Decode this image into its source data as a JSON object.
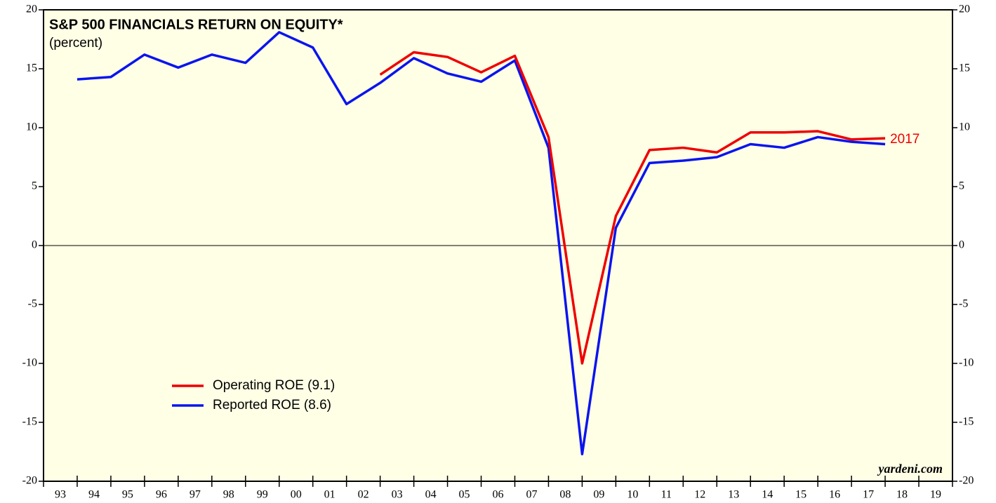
{
  "chart_data": {
    "type": "line",
    "title": "S&P 500 FINANCIALS RETURN ON EQUITY*",
    "subtitle": "(percent)",
    "x": [
      1993,
      1994,
      1995,
      1996,
      1997,
      1998,
      1999,
      2000,
      2001,
      2002,
      2003,
      2004,
      2005,
      2006,
      2007,
      2008,
      2009,
      2010,
      2011,
      2012,
      2013,
      2014,
      2015,
      2016,
      2017
    ],
    "x_labels": [
      "93",
      "94",
      "95",
      "96",
      "97",
      "98",
      "99",
      "00",
      "01",
      "02",
      "03",
      "04",
      "05",
      "06",
      "07",
      "08",
      "09",
      "10",
      "11",
      "12",
      "13",
      "14",
      "15",
      "16",
      "17",
      "18",
      "19"
    ],
    "xlim": [
      1992,
      2019
    ],
    "ylim": [
      -20,
      20
    ],
    "yticks": [
      -20,
      -15,
      -10,
      -5,
      0,
      5,
      10,
      15,
      20
    ],
    "series": [
      {
        "name": "Operating ROE (9.1)",
        "color": "#ee0000",
        "values": [
          null,
          null,
          null,
          null,
          null,
          null,
          null,
          null,
          null,
          14.5,
          16.4,
          16.0,
          14.7,
          16.1,
          9.2,
          -10.0,
          2.5,
          8.1,
          8.3,
          7.9,
          9.6,
          9.6,
          9.7,
          9.0,
          9.1
        ]
      },
      {
        "name": "Reported ROE (8.6)",
        "color": "#0a14ee",
        "values": [
          14.1,
          14.3,
          16.2,
          15.1,
          16.2,
          15.5,
          18.1,
          16.8,
          12.0,
          13.8,
          15.9,
          14.6,
          13.9,
          15.7,
          8.3,
          -17.7,
          1.5,
          7.0,
          7.2,
          7.5,
          8.6,
          8.3,
          9.2,
          8.8,
          8.6
        ]
      }
    ],
    "annotation": "2017",
    "source": "yardeni.com",
    "background": "#ffffe6"
  }
}
